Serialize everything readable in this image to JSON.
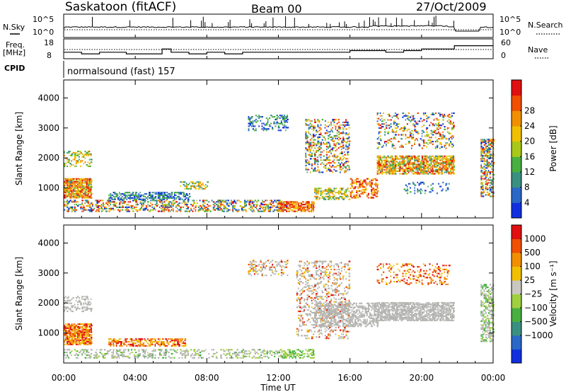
{
  "header": {
    "station": "Saskatoon (fitACF)",
    "beam": "Beam 00",
    "date": "27/Oct/2009",
    "left_labels": {
      "nsky": "N.Sky",
      "freq": "Freq.",
      "freq_unit": "[MHz]",
      "cpid": "CPID"
    },
    "right_labels": {
      "nsearch": "N.Search",
      "nave": "Nave"
    },
    "cpid_value": "normalsound (fast) 157"
  },
  "chart_data": [
    {
      "type": "line",
      "panel": "noise",
      "yticks_left": [
        "10^5",
        "10^0"
      ],
      "yticks_right": [
        "10^5",
        "10^0"
      ],
      "series": [
        {
          "name": "N.Sky",
          "style": "solid"
        },
        {
          "name": "N.Search",
          "style": "dotted"
        }
      ]
    },
    {
      "type": "line",
      "panel": "frequency",
      "yticks_left": [
        "18",
        "8"
      ],
      "yticks_right": [
        "60",
        "0"
      ],
      "series": [
        {
          "name": "Freq.",
          "style": "solid",
          "x": [
            "00:00",
            "01:00",
            "02:00",
            "03:30",
            "05:30",
            "06:00",
            "07:00",
            "08:00",
            "09:00",
            "10:00",
            "12:00",
            "14:00",
            "14:30",
            "16:00",
            "18:00",
            "19:00",
            "20:00",
            "21:50",
            "24:00"
          ],
          "y": [
            12,
            11,
            12,
            11,
            14,
            12,
            11,
            12,
            11,
            12,
            12,
            12,
            12,
            13,
            12,
            13,
            14,
            16,
            16
          ]
        },
        {
          "name": "Nave",
          "style": "dotted"
        }
      ]
    },
    {
      "type": "heatmap",
      "panel": "power",
      "ylabel": "Slant Range [km]",
      "yticks": [
        "1000",
        "2000",
        "3000",
        "4000"
      ],
      "ylim": [
        0,
        4600
      ],
      "colorbar": {
        "label": "Power [dB]",
        "ticks": [
          "4",
          "8",
          "12",
          "16",
          "20",
          "24",
          "28"
        ],
        "colors": [
          "#1030e0",
          "#2a68c8",
          "#3a9080",
          "#48b040",
          "#a8c818",
          "#f0c000",
          "#f09000",
          "#f05000",
          "#e01010"
        ]
      }
    },
    {
      "type": "heatmap",
      "panel": "velocity",
      "ylabel": "Slant Range [km]",
      "yticks": [
        "1000",
        "2000",
        "3000",
        "4000"
      ],
      "ylim": [
        0,
        4600
      ],
      "colorbar": {
        "label": "Velocity [m s⁻¹]",
        "ticks": [
          "1000",
          "500",
          "100",
          "25",
          "−25",
          "−100",
          "−500",
          "−1000"
        ],
        "colors": [
          "#1030e0",
          "#2a68c8",
          "#3a9080",
          "#48b040",
          "#a0d040",
          "#c8c8c0",
          "#f0c000",
          "#f09000",
          "#f05000",
          "#e01010"
        ]
      }
    }
  ],
  "x_axis": {
    "ticks": [
      "00:00",
      "04:00",
      "08:00",
      "12:00",
      "16:00",
      "20:00",
      "00:00"
    ],
    "label": "Time UT"
  },
  "colors": {
    "ground_scatter": "#b4b4b0"
  }
}
